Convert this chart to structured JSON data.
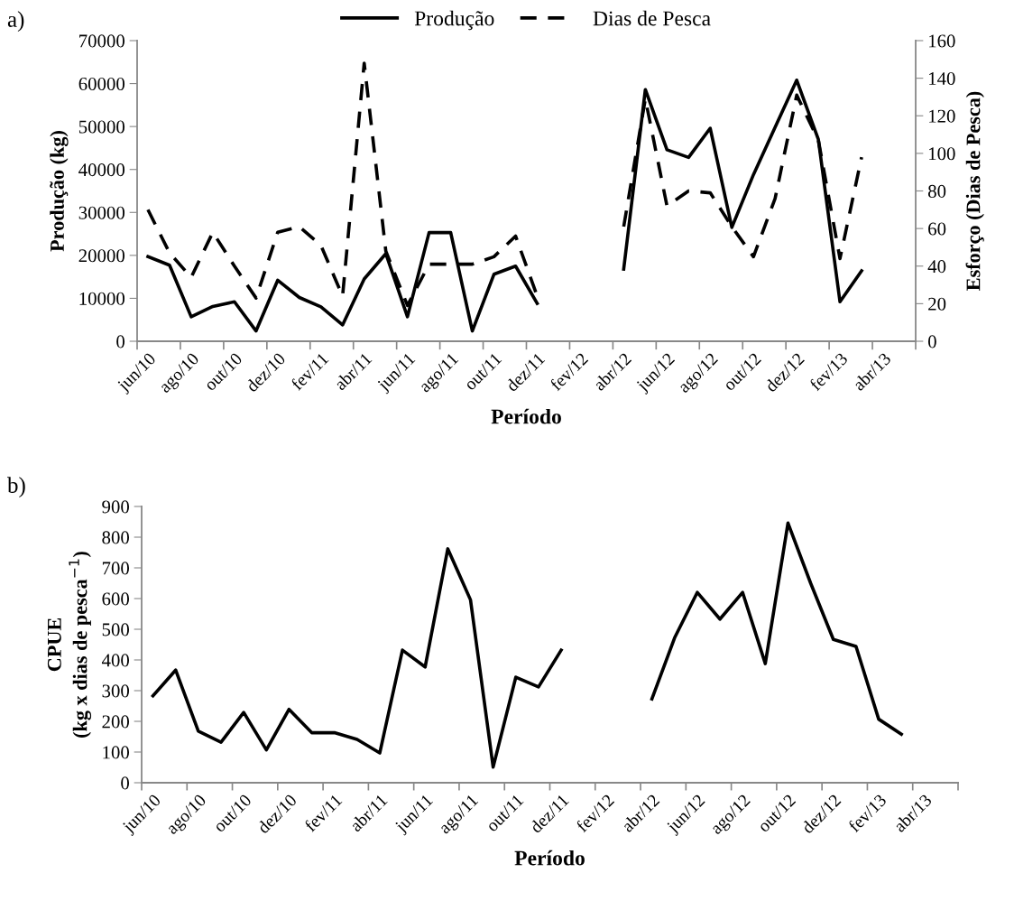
{
  "chart_data": [
    {
      "type": "line",
      "xlabel": "Período",
      "ylabel": "Produção (kg)",
      "y2label": "Esforço (Dias de Pesca)",
      "annotations": [
        "a)"
      ],
      "categories": [
        "jun/10",
        null,
        "ago/10",
        null,
        "out/10",
        null,
        "dez/10",
        null,
        "fev/11",
        null,
        "abr/11",
        null,
        "jun/11",
        null,
        "ago/11",
        null,
        "out/11",
        null,
        "dez/11",
        null,
        "fev/12",
        null,
        "abr/12",
        null,
        "jun/12",
        null,
        "ago/12",
        null,
        "out/12",
        null,
        "dez/12",
        null,
        "fev/13",
        null,
        "abr/13",
        null
      ],
      "series": [
        {
          "name": "Produção",
          "color": "#000000",
          "line_style": "solid",
          "values": [
            19700,
            17700,
            5700,
            8100,
            9200,
            2400,
            14200,
            10200,
            8000,
            3800,
            14500,
            20400,
            5700,
            25300,
            25300,
            2400,
            15600,
            17500,
            8800,
            null,
            null,
            null,
            16800,
            58600,
            44600,
            42800,
            49600,
            26500,
            38800,
            49800,
            60800,
            47000,
            9200,
            16400,
            null,
            null
          ]
        },
        {
          "name": "Dias de Pesca",
          "color": "#000000",
          "line_style": "dashed",
          "axis": "y2",
          "values": [
            70,
            47,
            34,
            58,
            40,
            23,
            58,
            61,
            51,
            24,
            148,
            48,
            19,
            41,
            41,
            41,
            45,
            56,
            24,
            null,
            null,
            null,
            61,
            129,
            72,
            80,
            79,
            61,
            45,
            76,
            131,
            107,
            44,
            98,
            null,
            null
          ]
        }
      ],
      "ylim": [
        0,
        70000
      ],
      "yticks": [
        0,
        10000,
        20000,
        30000,
        40000,
        50000,
        60000,
        70000
      ],
      "y2lim": [
        0,
        160
      ],
      "y2ticks": [
        0,
        20,
        40,
        60,
        80,
        100,
        120,
        140,
        160
      ],
      "grid": false,
      "legend": "top",
      "marker": "none"
    },
    {
      "type": "line",
      "xlabel": "Período",
      "ylabel": "CPUE\n(kg x dias de pesca$^{−1}$)",
      "annotations": [
        "b)"
      ],
      "categories": [
        "jun/10",
        null,
        "ago/10",
        null,
        "out/10",
        null,
        "dez/10",
        null,
        "fev/11",
        null,
        "abr/11",
        null,
        "jun/11",
        null,
        "ago/11",
        null,
        "out/11",
        null,
        "dez/11",
        null,
        "fev/12",
        null,
        "abr/12",
        null,
        "jun/12",
        null,
        "ago/12",
        null,
        "out/12",
        null,
        "dez/12",
        null,
        "fev/13",
        null,
        "abr/13",
        null
      ],
      "series": [
        {
          "color": "#000000",
          "line_style": "solid",
          "values": [
            283,
            367,
            168,
            132,
            229,
            107,
            239,
            163,
            163,
            141,
            97,
            432,
            377,
            762,
            596,
            51,
            344,
            312,
            432,
            null,
            null,
            null,
            273,
            472,
            620,
            533,
            620,
            388,
            846,
            650,
            467,
            444,
            207,
            158,
            null,
            null
          ]
        }
      ],
      "ylim": [
        0,
        900
      ],
      "yticks": [
        0,
        100,
        200,
        300,
        400,
        500,
        600,
        700,
        800,
        900
      ],
      "grid": false,
      "legend": false,
      "marker": "none"
    }
  ]
}
